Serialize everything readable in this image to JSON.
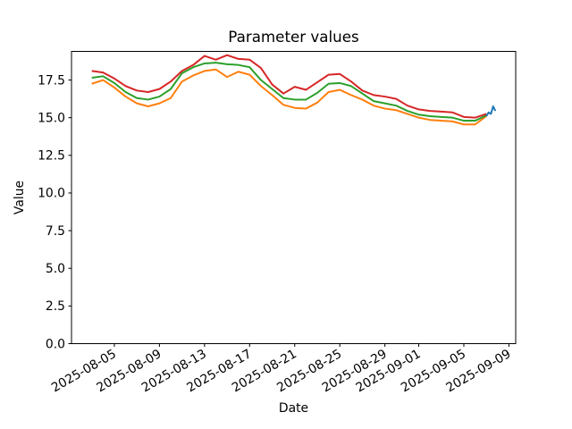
{
  "chart_data": {
    "type": "line",
    "title": "Parameter values",
    "xlabel": "Date",
    "ylabel": "Value",
    "background_color": "#ffffff",
    "grid": false,
    "legend": null,
    "x_axis": {
      "start_date": "2025-08-03",
      "range_days": [
        -1.8,
        37.6
      ],
      "tick_days": [
        2,
        6,
        10,
        14,
        18,
        22,
        26,
        29,
        33,
        37
      ],
      "tick_labels": [
        "2025-08-05",
        "2025-08-09",
        "2025-08-13",
        "2025-08-17",
        "2025-08-21",
        "2025-08-25",
        "2025-08-29",
        "2025-09-01",
        "2025-09-05",
        "2025-09-09"
      ],
      "tick_label_rotation_deg": 30
    },
    "y_axis": {
      "range": [
        0,
        19.4
      ],
      "tick_values": [
        0.0,
        2.5,
        5.0,
        7.5,
        10.0,
        12.5,
        15.0,
        17.5
      ],
      "tick_labels": [
        "0.0",
        "2.5",
        "5.0",
        "7.5",
        "10.0",
        "12.5",
        "15.0",
        "17.5"
      ]
    },
    "dates": [
      "2025-08-03",
      "2025-08-04",
      "2025-08-05",
      "2025-08-06",
      "2025-08-07",
      "2025-08-08",
      "2025-08-09",
      "2025-08-10",
      "2025-08-11",
      "2025-08-12",
      "2025-08-13",
      "2025-08-14",
      "2025-08-15",
      "2025-08-16",
      "2025-08-17",
      "2025-08-18",
      "2025-08-19",
      "2025-08-20",
      "2025-08-21",
      "2025-08-22",
      "2025-08-23",
      "2025-08-24",
      "2025-08-25",
      "2025-08-26",
      "2025-08-27",
      "2025-08-28",
      "2025-08-29",
      "2025-08-30",
      "2025-08-31",
      "2025-09-01",
      "2025-09-02",
      "2025-09-03",
      "2025-09-04",
      "2025-09-05",
      "2025-09-06",
      "2025-09-07"
    ],
    "series": [
      {
        "name": "series-orange",
        "color": "#ff7f0e",
        "values": [
          17.25,
          17.5,
          17.0,
          16.4,
          15.95,
          15.75,
          15.95,
          16.3,
          17.4,
          17.8,
          18.1,
          18.2,
          17.7,
          18.05,
          17.85,
          17.1,
          16.5,
          15.85,
          15.65,
          15.6,
          16.0,
          16.7,
          16.85,
          16.5,
          16.2,
          15.8,
          15.6,
          15.5,
          15.25,
          15.0,
          14.85,
          14.8,
          14.75,
          14.55,
          14.55,
          15.1
        ]
      },
      {
        "name": "series-green",
        "color": "#2ca02c",
        "values": [
          17.65,
          17.75,
          17.3,
          16.7,
          16.3,
          16.2,
          16.4,
          16.9,
          17.95,
          18.35,
          18.6,
          18.65,
          18.55,
          18.5,
          18.35,
          17.5,
          16.9,
          16.3,
          16.2,
          16.2,
          16.65,
          17.25,
          17.3,
          17.1,
          16.6,
          16.1,
          15.95,
          15.8,
          15.45,
          15.2,
          15.1,
          15.05,
          15.0,
          14.8,
          14.8,
          15.15
        ]
      },
      {
        "name": "series-red",
        "color": "#d62728",
        "values": [
          18.1,
          18.0,
          17.6,
          17.1,
          16.8,
          16.7,
          16.9,
          17.4,
          18.1,
          18.5,
          19.1,
          18.85,
          19.15,
          18.9,
          18.85,
          18.3,
          17.2,
          16.6,
          17.05,
          16.85,
          17.35,
          17.85,
          17.9,
          17.4,
          16.8,
          16.5,
          16.4,
          16.25,
          15.8,
          15.55,
          15.45,
          15.4,
          15.35,
          15.05,
          15.0,
          15.25
        ]
      },
      {
        "name": "series-blue",
        "color": "#1f77b4",
        "x_days": [
          35.0,
          35.2,
          35.4,
          35.6,
          35.8
        ],
        "values": [
          15.1,
          15.35,
          15.25,
          15.75,
          15.45
        ]
      }
    ]
  }
}
